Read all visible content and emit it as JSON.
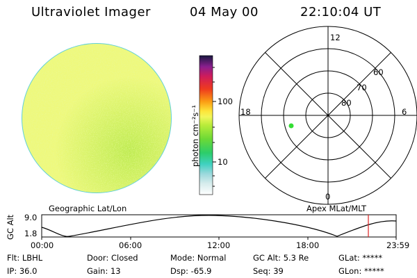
{
  "header": {
    "instrument": "Ultraviolet Imager",
    "date": "04 May 00",
    "time": "22:10:04 UT"
  },
  "colorbar": {
    "unit_label": "photon cm⁻²s⁻¹",
    "tick_100": "100",
    "tick_10": "10"
  },
  "polar": {
    "mlt_12": "12",
    "mlt_18": "18",
    "mlt_6": "6",
    "mlt_0": "0",
    "lat_60": "60",
    "lat_70": "70",
    "lat_80": "80",
    "marker_color": "#33dd33"
  },
  "labels": {
    "geo": "Geographic Lat/Lon",
    "apex": "Apex MLat/MLT"
  },
  "orbit": {
    "ylabel": "GC Alt",
    "ytick_top": "9.0",
    "ytick_bottom": "1.8",
    "x_ticks": [
      "00:00",
      "06:00",
      "12:00",
      "18:00",
      "23:59"
    ],
    "current_marker_color": "#dd2222"
  },
  "info": {
    "flt": "Flt: LBHL",
    "ip": "IP: 36.0",
    "door": "Door: Closed",
    "gain": "Gain: 13",
    "mode": "Mode: Normal",
    "dsp": "Dsp:  -65.9",
    "gcalt": "GC Alt: 5.3 Re",
    "seq": "Seq: 39",
    "glat": "GLat: *****",
    "glon": "GLon: *****"
  }
}
